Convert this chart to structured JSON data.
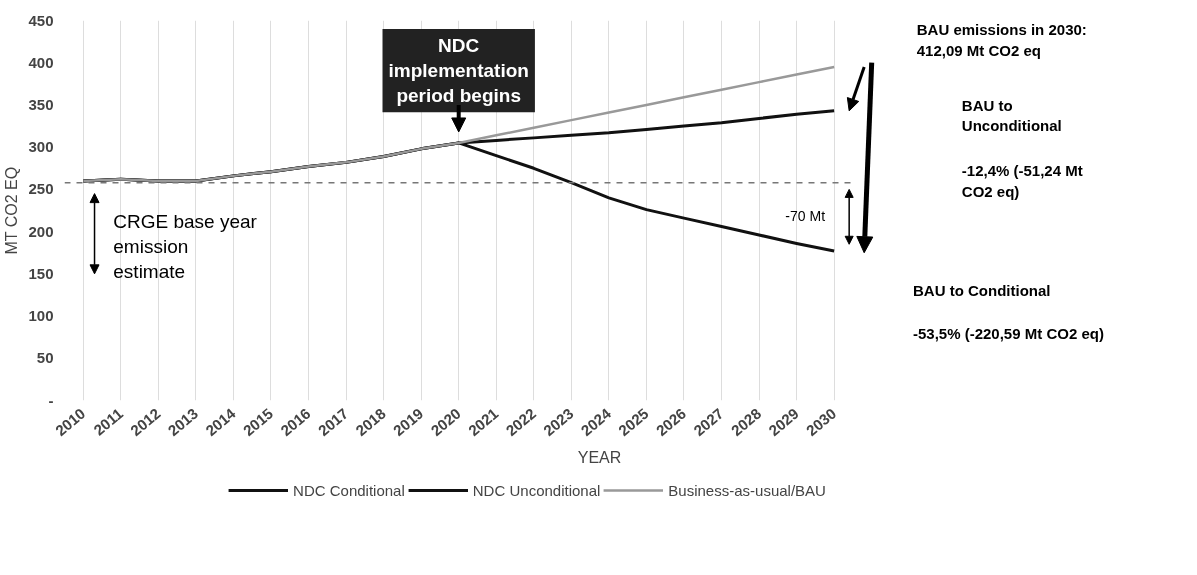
{
  "chart_data": {
    "type": "line",
    "xlabel": "YEAR",
    "ylabel": "MT CO2 EQ",
    "categories": [
      "2010",
      "2011",
      "2012",
      "2013",
      "2014",
      "2015",
      "2016",
      "2017",
      "2018",
      "2019",
      "2020",
      "2021",
      "2022",
      "2023",
      "2024",
      "2025",
      "2026",
      "2027",
      "2028",
      "2029",
      "2030"
    ],
    "series": [
      {
        "name": "NDC Conditional",
        "color": "#111111",
        "values": [
          260,
          262,
          260,
          260,
          266,
          271,
          277,
          282,
          289,
          298,
          305,
          290,
          275,
          258,
          240,
          226,
          216,
          206,
          196,
          186,
          177
        ]
      },
      {
        "name": "NDC Unconditional",
        "color": "#111111",
        "values": [
          260,
          262,
          260,
          260,
          266,
          271,
          277,
          282,
          289,
          298,
          305,
          308,
          311,
          314,
          317,
          321,
          325,
          329,
          334,
          339,
          343
        ]
      },
      {
        "name": "Business-as-usual/BAU",
        "color": "#999999",
        "values": [
          260,
          262,
          260,
          260,
          266,
          271,
          277,
          282,
          289,
          298,
          305,
          314,
          323,
          332,
          341,
          350,
          359,
          368,
          377,
          386,
          395
        ]
      }
    ],
    "ylim": [
      0,
      450
    ],
    "yticks": [
      {
        "value": 0,
        "label": "-"
      },
      50,
      100,
      150,
      200,
      250,
      300,
      350,
      400,
      450
    ],
    "grid": "x",
    "legend": "bottom",
    "line_style": "solid",
    "ref_lines": [
      {
        "axis": "y",
        "value": 258,
        "label": null,
        "color": "#777777",
        "line_style": "dashed"
      }
    ],
    "annotations": [
      "NDC implementation period begins",
      "CRGE base year emission estimate",
      "-70 Mt",
      "BAU emissions in 2030: 412,09 Mt CO2 eq",
      "BAU to Unconditional",
      "-12,4% (-51,24 Mt CO2 eq)",
      "BAU to Conditional",
      "-53,5% (-220,59 Mt CO2 eq)"
    ]
  }
}
